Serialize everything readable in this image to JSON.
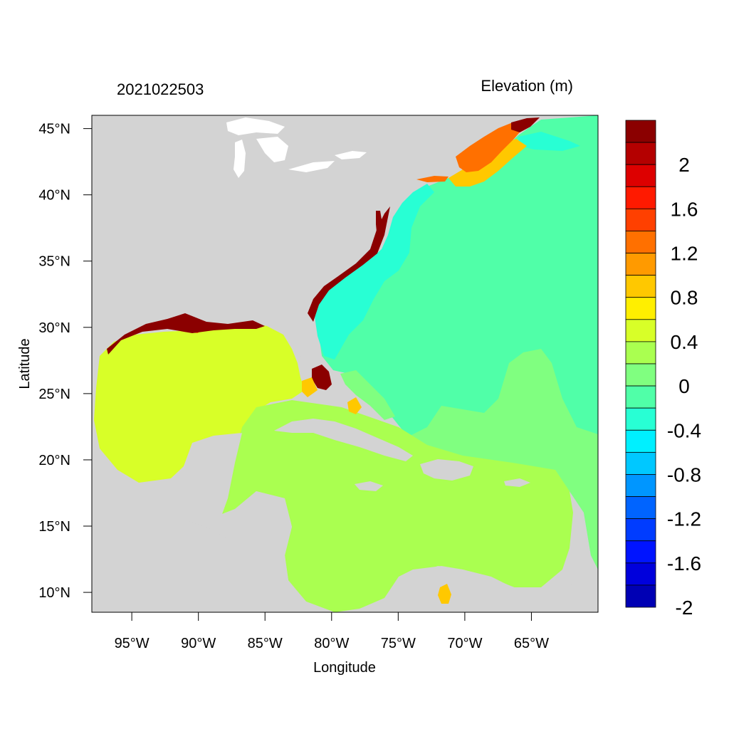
{
  "header": {
    "timestamp": "2021022503",
    "variable_title": "Elevation (m)"
  },
  "axes": {
    "xlabel": "Longitude",
    "ylabel": "Latitude",
    "lon_range": [
      -98,
      -60
    ],
    "lat_range": [
      8.5,
      46
    ],
    "x_ticks": [
      {
        "value": -95,
        "label": "95°W"
      },
      {
        "value": -90,
        "label": "90°W"
      },
      {
        "value": -85,
        "label": "85°W"
      },
      {
        "value": -80,
        "label": "80°W"
      },
      {
        "value": -75,
        "label": "75°W"
      },
      {
        "value": -70,
        "label": "70°W"
      },
      {
        "value": -65,
        "label": "65°W"
      }
    ],
    "y_ticks": [
      {
        "value": 45,
        "label": "45°N"
      },
      {
        "value": 40,
        "label": "40°N"
      },
      {
        "value": 35,
        "label": "35°N"
      },
      {
        "value": 30,
        "label": "30°N"
      },
      {
        "value": 25,
        "label": "25°N"
      },
      {
        "value": 20,
        "label": "20°N"
      },
      {
        "value": 15,
        "label": "15°N"
      },
      {
        "value": 10,
        "label": "10°N"
      }
    ]
  },
  "colorbar": {
    "bins": [
      {
        "min": 2.2,
        "max": 2.4,
        "color": "#8b0000"
      },
      {
        "min": 2.0,
        "max": 2.2,
        "color": "#b40000"
      },
      {
        "min": 1.8,
        "max": 2.0,
        "color": "#dd0000"
      },
      {
        "min": 1.6,
        "max": 1.8,
        "color": "#ff1a00"
      },
      {
        "min": 1.4,
        "max": 1.6,
        "color": "#ff4000"
      },
      {
        "min": 1.2,
        "max": 1.4,
        "color": "#ff7000"
      },
      {
        "min": 1.0,
        "max": 1.2,
        "color": "#ff9a00"
      },
      {
        "min": 0.8,
        "max": 1.0,
        "color": "#ffc800"
      },
      {
        "min": 0.6,
        "max": 0.8,
        "color": "#ffef00"
      },
      {
        "min": 0.4,
        "max": 0.6,
        "color": "#d8ff28"
      },
      {
        "min": 0.2,
        "max": 0.4,
        "color": "#aaff50"
      },
      {
        "min": 0.0,
        "max": 0.2,
        "color": "#80ff80"
      },
      {
        "min": -0.2,
        "max": 0.0,
        "color": "#50ffa8"
      },
      {
        "min": -0.4,
        "max": -0.2,
        "color": "#28ffd4"
      },
      {
        "min": -0.6,
        "max": -0.4,
        "color": "#00f0ff"
      },
      {
        "min": -0.8,
        "max": -0.6,
        "color": "#00c8ff"
      },
      {
        "min": -1.0,
        "max": -0.8,
        "color": "#0096ff"
      },
      {
        "min": -1.2,
        "max": -1.0,
        "color": "#0064ff"
      },
      {
        "min": -1.4,
        "max": -1.2,
        "color": "#003cff"
      },
      {
        "min": -1.6,
        "max": -1.4,
        "color": "#0014ff"
      },
      {
        "min": -1.8,
        "max": -1.6,
        "color": "#0000dc"
      },
      {
        "min": -2.0,
        "max": -1.8,
        "color": "#0000b4"
      }
    ],
    "tick_labels": [
      "2",
      "1.6",
      "1.2",
      "0.8",
      "0.4",
      "0",
      "-0.4",
      "-0.8",
      "-1.2",
      "-1.6",
      "-2"
    ]
  },
  "colors": {
    "land": "#d3d3d3",
    "gulf": "#d8ff28",
    "caribbean": "#aaff50",
    "atlantic": "#50ffa8",
    "atlantic_central": "#80ff80",
    "shelf": "#28ffd4",
    "surge_high": "#8b0000",
    "surge_mid": "#ff7000",
    "surge_low": "#ffc800"
  }
}
